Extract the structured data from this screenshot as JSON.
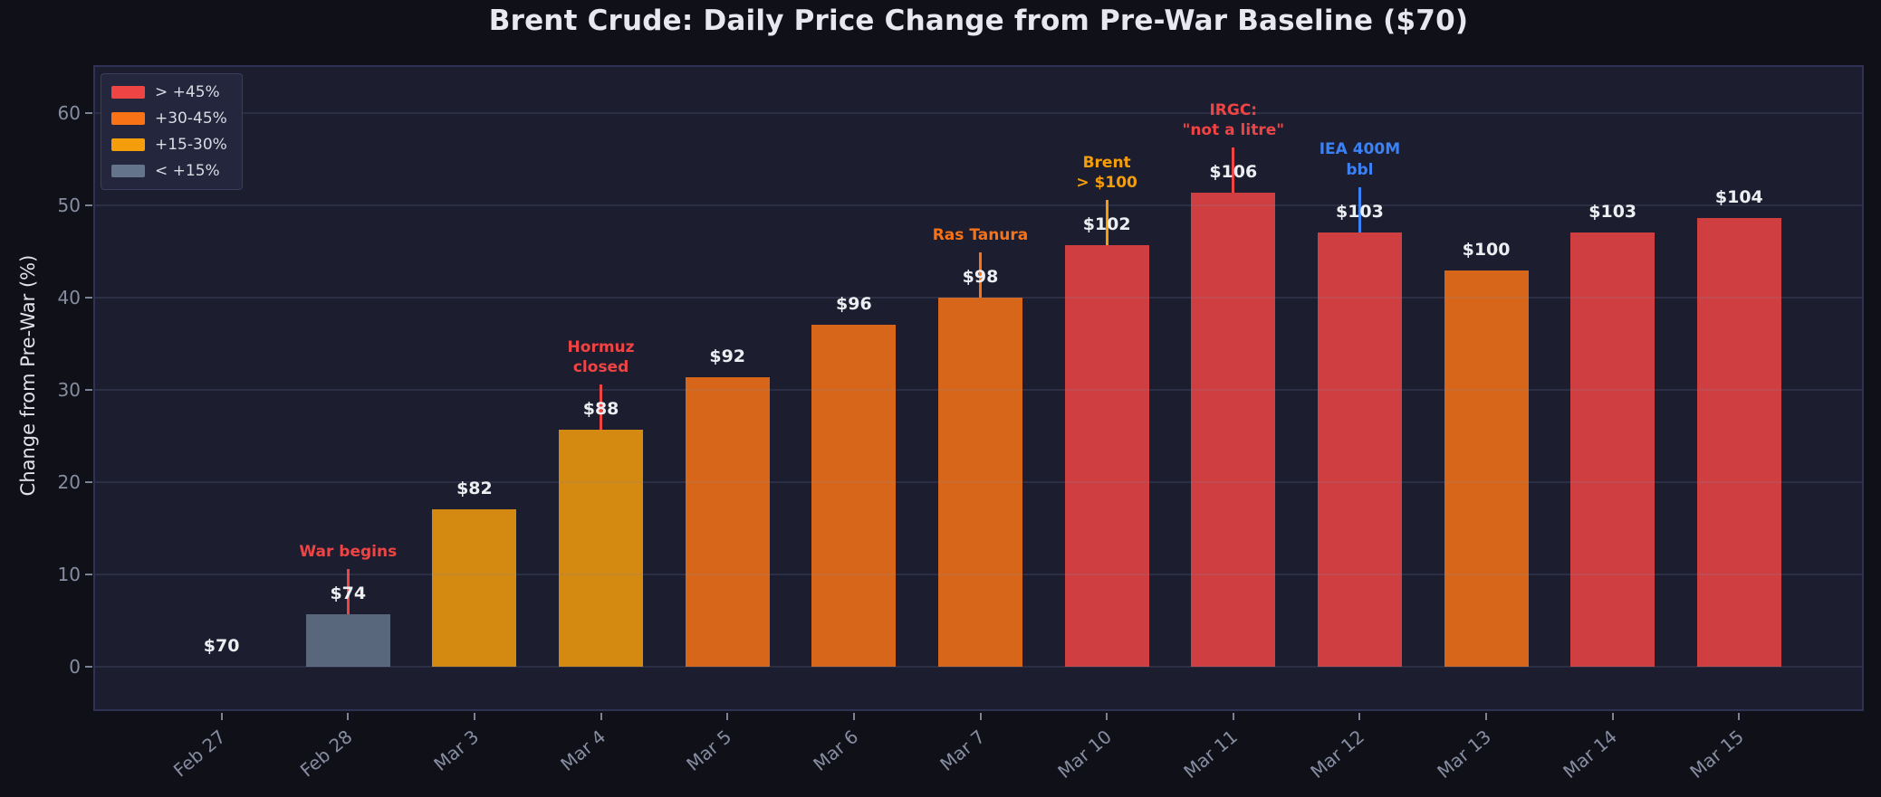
{
  "page_title": "Brent Crude: Daily Price Change from Pre-War Baseline ($70)",
  "chart_data": {
    "type": "bar",
    "title": "Brent Crude: Daily Price Change from Pre-War Baseline ($70)",
    "xlabel": "",
    "ylabel": "Change from Pre-War (%)",
    "ylim": [
      -5,
      65
    ],
    "yticks": [
      0,
      10,
      20,
      30,
      40,
      50,
      60
    ],
    "grid": true,
    "legend_position": "upper-left",
    "baseline_price_usd": 70,
    "categories": [
      "Feb 27",
      "Feb 28",
      "Mar 3",
      "Mar 4",
      "Mar 5",
      "Mar 6",
      "Mar 7",
      "Mar 10",
      "Mar 11",
      "Mar 12",
      "Mar 13",
      "Mar 14",
      "Mar 15"
    ],
    "values": [
      0.0,
      5.7,
      17.1,
      25.7,
      31.4,
      37.1,
      40.0,
      45.7,
      51.4,
      47.1,
      42.9,
      47.1,
      48.6
    ],
    "bar_labels": [
      "$70",
      "$74",
      "$82",
      "$88",
      "$92",
      "$96",
      "$98",
      "$102",
      "$106",
      "$103",
      "$100",
      "$103",
      "$104"
    ],
    "bar_buckets": [
      "lt15",
      "lt15",
      "b15_30",
      "b15_30",
      "b30_45",
      "b30_45",
      "b30_45",
      "gt45",
      "gt45",
      "gt45",
      "b30_45",
      "gt45",
      "gt45"
    ],
    "bucket_colors": {
      "gt45": "#ef4444",
      "b30_45": "#f97316",
      "b15_30": "#f59e0b",
      "lt15": "#64748b"
    },
    "legend": [
      {
        "label": "> +45%",
        "color": "#ef4444"
      },
      {
        "label": "+30-45%",
        "color": "#f97316"
      },
      {
        "label": "+15-30%",
        "color": "#f59e0b"
      },
      {
        "label": "< +15%",
        "color": "#64748b"
      }
    ],
    "annotations": [
      {
        "index": 1,
        "lines": [
          "War begins"
        ],
        "color": "#ef4444"
      },
      {
        "index": 3,
        "lines": [
          "Hormuz",
          "closed"
        ],
        "color": "#ef4444"
      },
      {
        "index": 6,
        "lines": [
          "Ras Tanura"
        ],
        "color": "#f97316"
      },
      {
        "index": 7,
        "lines": [
          "Brent",
          "> $100"
        ],
        "color": "#f59e0b"
      },
      {
        "index": 8,
        "lines": [
          "IRGC:",
          "\"not a litre\""
        ],
        "color": "#ef4444"
      },
      {
        "index": 9,
        "lines": [
          "IEA 400M",
          "bbl"
        ],
        "color": "#3b82f6"
      }
    ],
    "colors": {
      "page_background": "#101118",
      "plot_background": "#1c1e30",
      "plot_border": "#2f3254",
      "tick_text": "#868da1",
      "title_text": "#e7e9ef",
      "bar_label_text": "#eceef2"
    }
  }
}
